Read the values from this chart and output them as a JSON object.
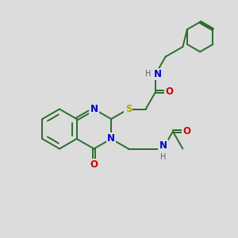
{
  "bg_color": "#dcdcdc",
  "bond_color": "#2a6e2a",
  "N_color": "#0000cc",
  "O_color": "#cc0000",
  "S_color": "#aaaa00",
  "H_color": "#606060",
  "bond_lw": 1.4,
  "font_size": 8.5,
  "figsize": [
    3.0,
    3.0
  ],
  "dpi": 100,
  "xlim": [
    -1,
    11
  ],
  "ylim": [
    -1,
    11
  ]
}
